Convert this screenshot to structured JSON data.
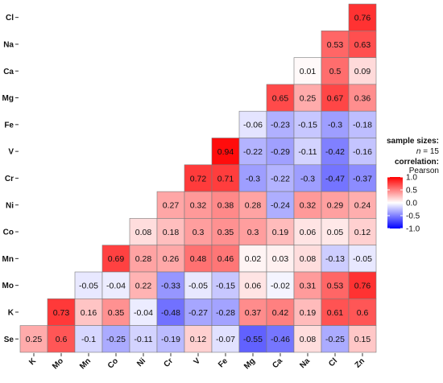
{
  "chart_data": {
    "type": "heatmap",
    "x_labels": [
      "K",
      "Mo",
      "Mn",
      "Co",
      "Ni",
      "Cr",
      "V",
      "Fe",
      "Mg",
      "Ca",
      "Na",
      "Cl",
      "Zn"
    ],
    "y_labels": [
      "Cl",
      "Na",
      "Ca",
      "Mg",
      "Fe",
      "V",
      "Cr",
      "Ni",
      "Co",
      "Mn",
      "Mo",
      "K",
      "Se"
    ],
    "matrix": [
      [
        null,
        null,
        null,
        null,
        null,
        null,
        null,
        null,
        null,
        null,
        null,
        null,
        0.76
      ],
      [
        null,
        null,
        null,
        null,
        null,
        null,
        null,
        null,
        null,
        null,
        null,
        0.53,
        0.63
      ],
      [
        null,
        null,
        null,
        null,
        null,
        null,
        null,
        null,
        null,
        null,
        0.01,
        0.5,
        0.09
      ],
      [
        null,
        null,
        null,
        null,
        null,
        null,
        null,
        null,
        null,
        0.65,
        0.25,
        0.67,
        0.36
      ],
      [
        null,
        null,
        null,
        null,
        null,
        null,
        null,
        null,
        -0.06,
        -0.23,
        -0.15,
        -0.3,
        -0.18
      ],
      [
        null,
        null,
        null,
        null,
        null,
        null,
        null,
        0.94,
        -0.22,
        -0.29,
        -0.11,
        -0.42,
        -0.16
      ],
      [
        null,
        null,
        null,
        null,
        null,
        null,
        0.72,
        0.71,
        -0.3,
        -0.22,
        -0.3,
        -0.47,
        -0.37
      ],
      [
        null,
        null,
        null,
        null,
        null,
        0.27,
        0.32,
        0.38,
        0.28,
        -0.24,
        0.32,
        0.29,
        0.24
      ],
      [
        null,
        null,
        null,
        null,
        0.08,
        0.18,
        0.3,
        0.35,
        0.3,
        0.19,
        0.06,
        0.05,
        0.12
      ],
      [
        null,
        null,
        null,
        0.69,
        0.28,
        0.26,
        0.48,
        0.46,
        0.02,
        0.03,
        0.08,
        -0.13,
        -0.05
      ],
      [
        null,
        null,
        -0.05,
        -0.04,
        0.22,
        -0.33,
        -0.05,
        -0.15,
        0.06,
        -0.02,
        0.31,
        0.53,
        0.76
      ],
      [
        null,
        0.73,
        0.16,
        0.35,
        -0.04,
        -0.48,
        -0.27,
        -0.28,
        0.37,
        0.42,
        0.19,
        0.61,
        0.6
      ],
      [
        0.25,
        0.6,
        -0.1,
        -0.25,
        -0.11,
        -0.19,
        0.12,
        -0.07,
        -0.55,
        -0.46,
        0.08,
        -0.25,
        0.15
      ]
    ],
    "value_range": [
      -1,
      1
    ],
    "colors": {
      "low": "#0000ff",
      "mid": "#ffffff",
      "high": "#ff0000"
    },
    "legend": {
      "title_line1": "sample sizes:",
      "title_line2_prefix": "n",
      "title_line2_value": "= 15",
      "title_line3": "correlation:",
      "title_line4": "Pearson",
      "ticks": [
        "1.0",
        "0.5",
        "0.0",
        "-0.5",
        "-1.0"
      ],
      "tick_values": [
        1.0,
        0.5,
        0.0,
        -0.5,
        -1.0
      ],
      "placement": "right"
    }
  }
}
